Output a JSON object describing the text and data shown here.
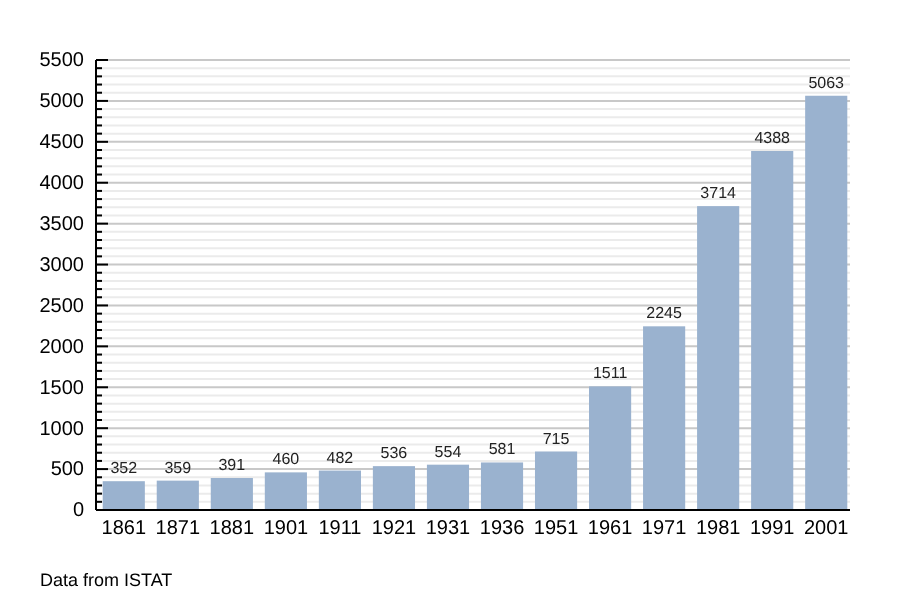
{
  "chart_data": {
    "type": "bar",
    "categories": [
      "1861",
      "1871",
      "1881",
      "1901",
      "1911",
      "1921",
      "1931",
      "1936",
      "1951",
      "1961",
      "1971",
      "1981",
      "1991",
      "2001"
    ],
    "values": [
      352,
      359,
      391,
      460,
      482,
      536,
      554,
      581,
      715,
      1511,
      2245,
      3714,
      4388,
      5063
    ],
    "color": "#9ab2cf",
    "ylim": [
      0,
      5500
    ],
    "yticks": [
      0,
      {
        "value": 100,
        "label": null
      },
      {
        "value": 200,
        "label": null
      },
      {
        "value": 300,
        "label": null
      },
      {
        "value": 400,
        "label": null
      },
      500,
      {
        "value": 600,
        "label": null
      },
      {
        "value": 700,
        "label": null
      },
      {
        "value": 800,
        "label": null
      },
      {
        "value": 900,
        "label": null
      },
      1000,
      {
        "value": 1100,
        "label": null
      },
      {
        "value": 1200,
        "label": null
      },
      {
        "value": 1300,
        "label": null
      },
      {
        "value": 1400,
        "label": null
      },
      1500,
      {
        "value": 1600,
        "label": null
      },
      {
        "value": 1700,
        "label": null
      },
      {
        "value": 1800,
        "label": null
      },
      {
        "value": 1900,
        "label": null
      },
      2000,
      {
        "value": 2100,
        "label": null
      },
      {
        "value": 2200,
        "label": null
      },
      {
        "value": 2300,
        "label": null
      },
      {
        "value": 2400,
        "label": null
      },
      2500,
      {
        "value": 2600,
        "label": null
      },
      {
        "value": 2700,
        "label": null
      },
      {
        "value": 2800,
        "label": null
      },
      {
        "value": 2900,
        "label": null
      },
      3000,
      {
        "value": 3100,
        "label": null
      },
      {
        "value": 3200,
        "label": null
      },
      {
        "value": 3300,
        "label": null
      },
      {
        "value": 3400,
        "label": null
      },
      3500,
      {
        "value": 3600,
        "label": null
      },
      {
        "value": 3700,
        "label": null
      },
      {
        "value": 3800,
        "label": null
      },
      {
        "value": 3900,
        "label": null
      },
      4000,
      {
        "value": 4100,
        "label": null
      },
      {
        "value": 4200,
        "label": null
      },
      {
        "value": 4300,
        "label": null
      },
      {
        "value": 4400,
        "label": null
      },
      4500,
      {
        "value": 4600,
        "label": null
      },
      {
        "value": 4700,
        "label": null
      },
      {
        "value": 4800,
        "label": null
      },
      {
        "value": 4900,
        "label": null
      },
      5000,
      {
        "value": 5100,
        "label": null
      },
      {
        "value": 5200,
        "label": null
      },
      {
        "value": 5300,
        "label": null
      },
      {
        "value": 5400,
        "label": null
      },
      5500
    ],
    "grid": "y",
    "data_labels": true,
    "annotations": [
      "Data from ISTAT"
    ]
  }
}
